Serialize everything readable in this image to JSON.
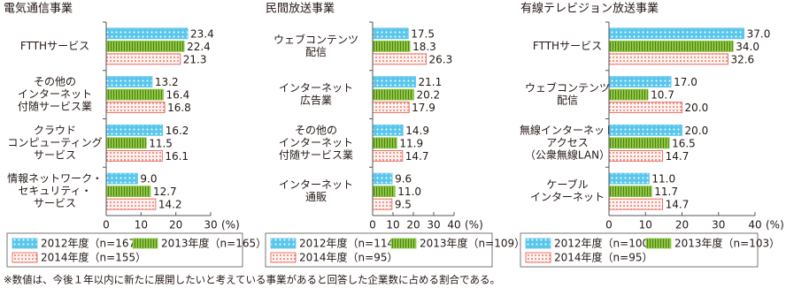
{
  "chart_data": [
    {
      "type": "bar",
      "orientation": "horizontal",
      "title": "電気通信事業",
      "categories": [
        [
          "FTTHサービス"
        ],
        [
          "その他の",
          "インターネット",
          "付随サービス業"
        ],
        [
          "クラウド",
          "コンピューティング",
          "サービス"
        ],
        [
          "情報ネットワーク・",
          "セキュリティ・",
          "サービス"
        ]
      ],
      "series": [
        {
          "name": "2012年度（n=167）",
          "color": "#5bc6ec",
          "values": [
            23.4,
            13.2,
            16.2,
            9.0
          ],
          "value_labels": [
            "23.4",
            "13.2",
            "16.2",
            "9.0"
          ]
        },
        {
          "name": "2013年度（n=165）",
          "color": "#8cc63f",
          "values": [
            22.4,
            16.4,
            11.5,
            12.7
          ],
          "value_labels": [
            "22.4",
            "16.4",
            "11.5",
            "12.7"
          ]
        },
        {
          "name": "2014年度（n=155）",
          "color": "#e2574c",
          "values": [
            21.3,
            16.8,
            16.1,
            14.2
          ],
          "value_labels": [
            "21.3",
            "16.8",
            "16.1",
            "14.2"
          ]
        }
      ],
      "xlim": [
        0,
        30
      ],
      "xticks": [
        0,
        10,
        20,
        30
      ],
      "x_unit": "(%)",
      "grid": false
    },
    {
      "type": "bar",
      "orientation": "horizontal",
      "title": "民間放送事業",
      "categories": [
        [
          "ウェブコンテンツ",
          "配信"
        ],
        [
          "インターネット",
          "広告業"
        ],
        [
          "その他の",
          "インターネット",
          "付随サービス業"
        ],
        [
          "インターネット",
          "通販"
        ]
      ],
      "series": [
        {
          "name": "2012年度（n=114）",
          "color": "#5bc6ec",
          "values": [
            17.5,
            21.1,
            14.9,
            9.6
          ],
          "value_labels": [
            "17.5",
            "21.1",
            "14.9",
            "9.6"
          ]
        },
        {
          "name": "2013年度（n=109）",
          "color": "#8cc63f",
          "values": [
            18.3,
            20.2,
            11.9,
            11.0
          ],
          "value_labels": [
            "18.3",
            "20.2",
            "11.9",
            "11.0"
          ]
        },
        {
          "name": "2014年度（n=95）",
          "color": "#e2574c",
          "values": [
            26.3,
            17.9,
            14.7,
            9.5
          ],
          "value_labels": [
            "26.3",
            "17.9",
            "14.7",
            "9.5"
          ]
        }
      ],
      "xlim": [
        0,
        40
      ],
      "xticks": [
        0,
        10,
        20,
        30,
        40
      ],
      "x_unit": "(%)",
      "grid": false
    },
    {
      "type": "bar",
      "orientation": "horizontal",
      "title": "有線テレビジョン放送事業",
      "categories": [
        [
          "FTTHサービス"
        ],
        [
          "ウェブコンテンツ",
          "配信"
        ],
        [
          "無線インターネット",
          "アクセス",
          "（公衆無線LAN）"
        ],
        [
          "ケーブル",
          "インターネット"
        ]
      ],
      "series": [
        {
          "name": "2012年度（n=100）",
          "color": "#5bc6ec",
          "values": [
            37.0,
            17.0,
            20.0,
            11.0
          ],
          "value_labels": [
            "37.0",
            "17.0",
            "20.0",
            "11.0"
          ]
        },
        {
          "name": "2013年度（n=103）",
          "color": "#8cc63f",
          "values": [
            34.0,
            10.7,
            16.5,
            11.7
          ],
          "value_labels": [
            "34.0",
            "10.7",
            "16.5",
            "11.7"
          ]
        },
        {
          "name": "2014年度（n=95）",
          "color": "#e2574c",
          "values": [
            32.6,
            20.0,
            14.7,
            14.7
          ],
          "value_labels": [
            "32.6",
            "20.0",
            "14.7",
            "14.7"
          ]
        }
      ],
      "xlim": [
        0,
        40
      ],
      "xticks": [
        0,
        10,
        20,
        30,
        40
      ],
      "x_unit": "(%)",
      "grid": false
    }
  ],
  "note": "※数値は、今後１年以内に新たに展開したいと考えている事業があると回答した企業数に占める割合である。"
}
